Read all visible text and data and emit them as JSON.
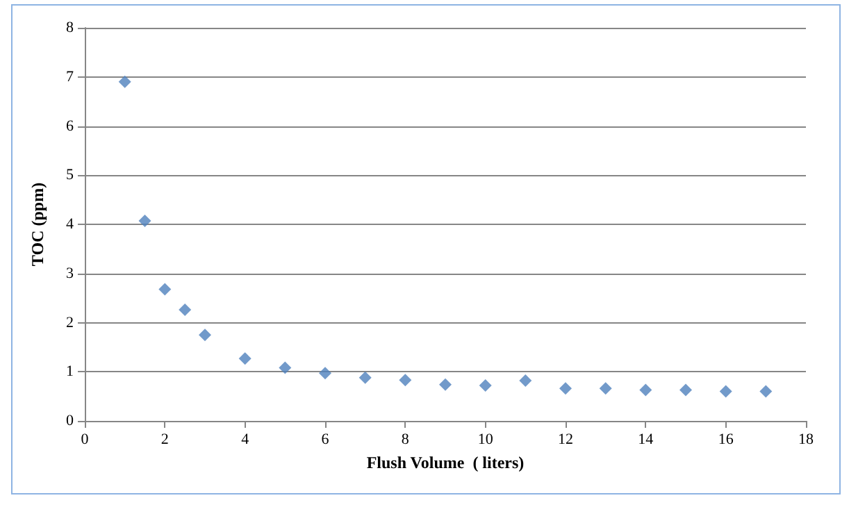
{
  "chart_data": {
    "type": "scatter",
    "xlabel": "Flush Volume  ( liters)",
    "ylabel": "TOC (ppm)",
    "x": [
      1,
      1.5,
      2,
      2.5,
      3,
      4,
      5,
      6,
      7,
      8,
      9,
      10,
      11,
      12,
      13,
      14,
      15,
      16,
      17
    ],
    "series": [
      {
        "color": "#4f81bd",
        "values": [
          6.9,
          4.07,
          2.68,
          2.26,
          1.75,
          1.27,
          1.08,
          0.97,
          0.88,
          0.83,
          0.74,
          0.72,
          0.82,
          0.66,
          0.66,
          0.63,
          0.63,
          0.6,
          0.6
        ]
      }
    ],
    "xlim": [
      0,
      18
    ],
    "xticks": [
      0,
      2,
      4,
      6,
      8,
      10,
      12,
      14,
      16,
      18
    ],
    "ylim": [
      0,
      8
    ],
    "yticks": [
      0,
      1,
      2,
      3,
      4,
      5,
      6,
      7,
      8
    ],
    "grid": "y",
    "marker": "diamond"
  }
}
